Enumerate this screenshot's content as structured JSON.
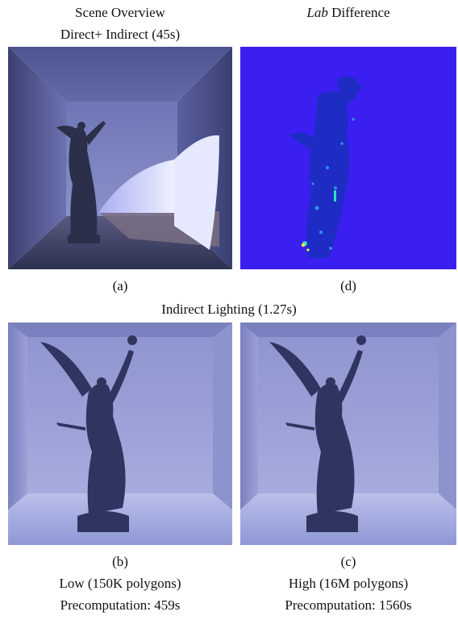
{
  "figure": {
    "top_left_title": "Scene Overview",
    "top_left_subtitle": "Direct+ Indirect (45s)",
    "top_right_title_italic": "Lab",
    "top_right_title_rest": " Difference",
    "label_a": "(a)",
    "label_d": "(d)",
    "middle_title": "Indirect Lighting (1.27s)",
    "label_b": "(b)",
    "label_c": "(c)",
    "b_caption_1": "Low (150K polygons)",
    "b_caption_2": "Precomputation: 459s",
    "c_caption_1": "High (16M polygons)",
    "c_caption_2": "Precomputation: 1560s"
  },
  "colors": {
    "diff_background": "#3a1ff0",
    "room_wall": "#8e93cc",
    "room_floor_blue": "#aeb6e6"
  }
}
